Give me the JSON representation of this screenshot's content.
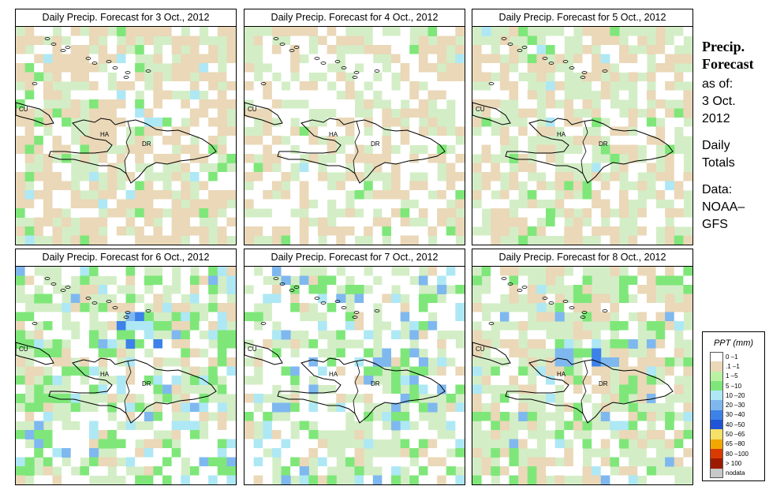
{
  "panels": [
    {
      "title": "Daily Precip. Forecast for  3 Oct., 2012",
      "seed": 11,
      "profile": [
        0.28,
        0.42,
        0.22,
        0.05,
        0.03,
        0,
        0,
        0
      ],
      "hot": null
    },
    {
      "title": "Daily Precip. Forecast for  4 Oct., 2012",
      "seed": 23,
      "profile": [
        0.4,
        0.28,
        0.28,
        0.03,
        0.01,
        0,
        0,
        0
      ],
      "hot": null
    },
    {
      "title": "Daily Precip. Forecast for  5 Oct., 2012",
      "seed": 37,
      "profile": [
        0.26,
        0.3,
        0.38,
        0.04,
        0.02,
        0,
        0,
        0
      ],
      "hot": null
    },
    {
      "title": "Daily Precip. Forecast for  6 Oct., 2012",
      "seed": 41,
      "profile": [
        0.34,
        0.12,
        0.28,
        0.14,
        0.09,
        0.03,
        0,
        0
      ],
      "hot": [
        5,
        8
      ]
    },
    {
      "title": "Daily Precip. Forecast for  7 Oct., 2012",
      "seed": 53,
      "profile": [
        0.42,
        0.06,
        0.3,
        0.1,
        0.08,
        0.04,
        0,
        0
      ],
      "hot": [
        9,
        10
      ]
    },
    {
      "title": "Daily Precip. Forecast for  8 Oct., 2012",
      "seed": 67,
      "profile": [
        0.18,
        0.3,
        0.36,
        0.1,
        0.04,
        0.02,
        0,
        0
      ],
      "hot": [
        8,
        10
      ]
    }
  ],
  "country_labels": [
    "CU",
    "HA",
    "DR"
  ],
  "side": {
    "title1": "Precip.",
    "title2": "Forecast",
    "asof": "as of:",
    "date1": "3 Oct.",
    "date2": "2012",
    "daily1": "Daily",
    "daily2": "Totals",
    "data1": "Data:",
    "data2": "NOAA–",
    "data3": "GFS"
  },
  "legend": {
    "title": "PPT (mm)",
    "items": [
      {
        "label": "0 –1",
        "color": "#ffffff"
      },
      {
        "label": ".1 –1",
        "color": "#ead8b8"
      },
      {
        "label": "1 –5",
        "color": "#b9f2a3"
      },
      {
        "label": "5 –10",
        "color": "#7fe77a"
      },
      {
        "label": "10 –20",
        "color": "#aee8f5"
      },
      {
        "label": "20 –30",
        "color": "#7fb8ef"
      },
      {
        "label": "30 –40",
        "color": "#3d82e8"
      },
      {
        "label": "40 –50",
        "color": "#1f55d4"
      },
      {
        "label": "50 –65",
        "color": "#f5e06a"
      },
      {
        "label": "65 –80",
        "color": "#f2a800"
      },
      {
        "label": "80 –100",
        "color": "#d83a00"
      },
      {
        "label": "> 100",
        "color": "#9c1a00"
      },
      {
        "label": "nodata",
        "color": "#c8c8c8"
      }
    ]
  }
}
